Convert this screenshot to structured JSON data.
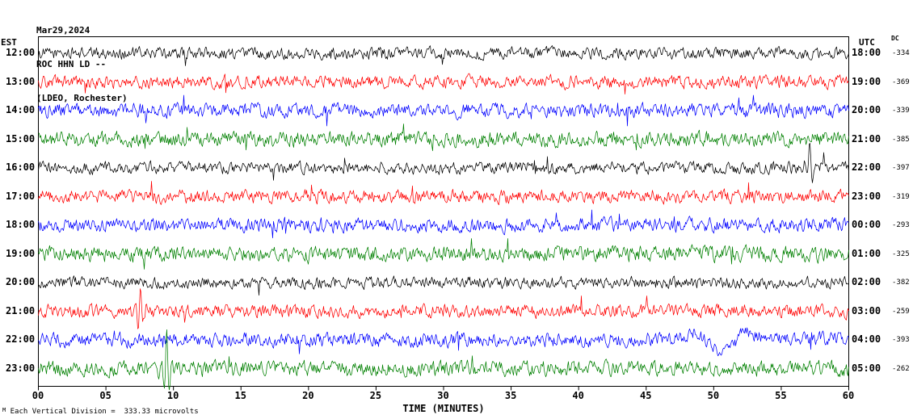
{
  "header": {
    "date": "Mar29,2024",
    "station": "ROC HHN LD --",
    "location": "(LDEO, Rochester)"
  },
  "axes": {
    "left_label": "EST",
    "right_label": "UTC",
    "dc_label": "DC"
  },
  "footer": {
    "marker": "M",
    "scale_note": "Each Vertical Division =  333.33 microvolts"
  },
  "chart_data": {
    "type": "line",
    "x_title": "TIME (MINUTES)",
    "x_range_minutes": [
      0,
      60
    ],
    "x_tick_labels": [
      "00",
      "05",
      "10",
      "15",
      "20",
      "25",
      "30",
      "35",
      "40",
      "45",
      "50",
      "55",
      "60"
    ],
    "minutes_per_line": 60,
    "vertical_division_microvolts": 333.33,
    "trace_colors_cycle": [
      "#000000",
      "#ff0000",
      "#0000ff",
      "#008000"
    ],
    "rows": [
      {
        "est": "12:00",
        "utc": "18:00",
        "dc": "-334",
        "color": "#000000"
      },
      {
        "est": "13:00",
        "utc": "19:00",
        "dc": "-369",
        "color": "#ff0000"
      },
      {
        "est": "14:00",
        "utc": "20:00",
        "dc": "-339",
        "color": "#0000ff"
      },
      {
        "est": "15:00",
        "utc": "21:00",
        "dc": "-385",
        "color": "#008000"
      },
      {
        "est": "16:00",
        "utc": "22:00",
        "dc": "-397",
        "color": "#000000"
      },
      {
        "est": "17:00",
        "utc": "23:00",
        "dc": "-319",
        "color": "#ff0000"
      },
      {
        "est": "18:00",
        "utc": "00:00",
        "dc": "-293",
        "color": "#0000ff"
      },
      {
        "est": "19:00",
        "utc": "01:00",
        "dc": "-325",
        "color": "#008000"
      },
      {
        "est": "20:00",
        "utc": "02:00",
        "dc": "-382",
        "color": "#000000"
      },
      {
        "est": "21:00",
        "utc": "03:00",
        "dc": "-259",
        "color": "#ff0000"
      },
      {
        "est": "22:00",
        "utc": "04:00",
        "dc": "-393",
        "color": "#0000ff"
      },
      {
        "est": "23:00",
        "utc": "05:00",
        "dc": "-262",
        "color": "#008000"
      }
    ],
    "events": [
      {
        "row": 4,
        "type": "spike",
        "minute": 57,
        "up": 50,
        "down": 20
      },
      {
        "row": 9,
        "type": "spike",
        "minute": 7.5,
        "up": 35,
        "down": 40
      },
      {
        "row": 10,
        "type": "swell",
        "minute_start": 47,
        "minute_end": 54,
        "amp": 15
      },
      {
        "row": 11,
        "type": "spike",
        "minute": 9.4,
        "up": 70,
        "down": 34
      }
    ]
  }
}
